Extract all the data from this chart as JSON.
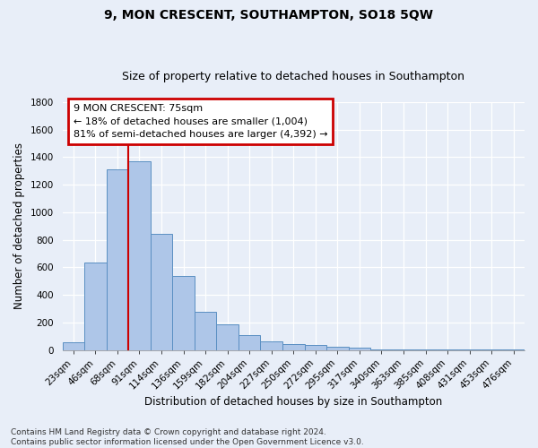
{
  "title": "9, MON CRESCENT, SOUTHAMPTON, SO18 5QW",
  "subtitle": "Size of property relative to detached houses in Southampton",
  "xlabel": "Distribution of detached houses by size in Southampton",
  "ylabel": "Number of detached properties",
  "categories": [
    "23sqm",
    "46sqm",
    "68sqm",
    "91sqm",
    "114sqm",
    "136sqm",
    "159sqm",
    "182sqm",
    "204sqm",
    "227sqm",
    "250sqm",
    "272sqm",
    "295sqm",
    "317sqm",
    "340sqm",
    "363sqm",
    "385sqm",
    "408sqm",
    "431sqm",
    "453sqm",
    "476sqm"
  ],
  "values": [
    55,
    635,
    1310,
    1370,
    845,
    535,
    280,
    185,
    107,
    65,
    40,
    37,
    22,
    14,
    5,
    5,
    2,
    2,
    1,
    1,
    1
  ],
  "bar_color": "#aec6e8",
  "bar_edge_color": "#5a8fc2",
  "vline_x": 2.5,
  "vline_color": "#cc0000",
  "annotation_text": "9 MON CRESCENT: 75sqm\n← 18% of detached houses are smaller (1,004)\n81% of semi-detached houses are larger (4,392) →",
  "annotation_box_color": "#cc0000",
  "ylim": [
    0,
    1800
  ],
  "yticks": [
    0,
    200,
    400,
    600,
    800,
    1000,
    1200,
    1400,
    1600,
    1800
  ],
  "footnote": "Contains HM Land Registry data © Crown copyright and database right 2024.\nContains public sector information licensed under the Open Government Licence v3.0.",
  "background_color": "#e8eef8",
  "grid_color": "#ffffff",
  "title_fontsize": 10,
  "subtitle_fontsize": 9,
  "axis_label_fontsize": 8.5,
  "tick_fontsize": 7.5,
  "footnote_fontsize": 6.5
}
